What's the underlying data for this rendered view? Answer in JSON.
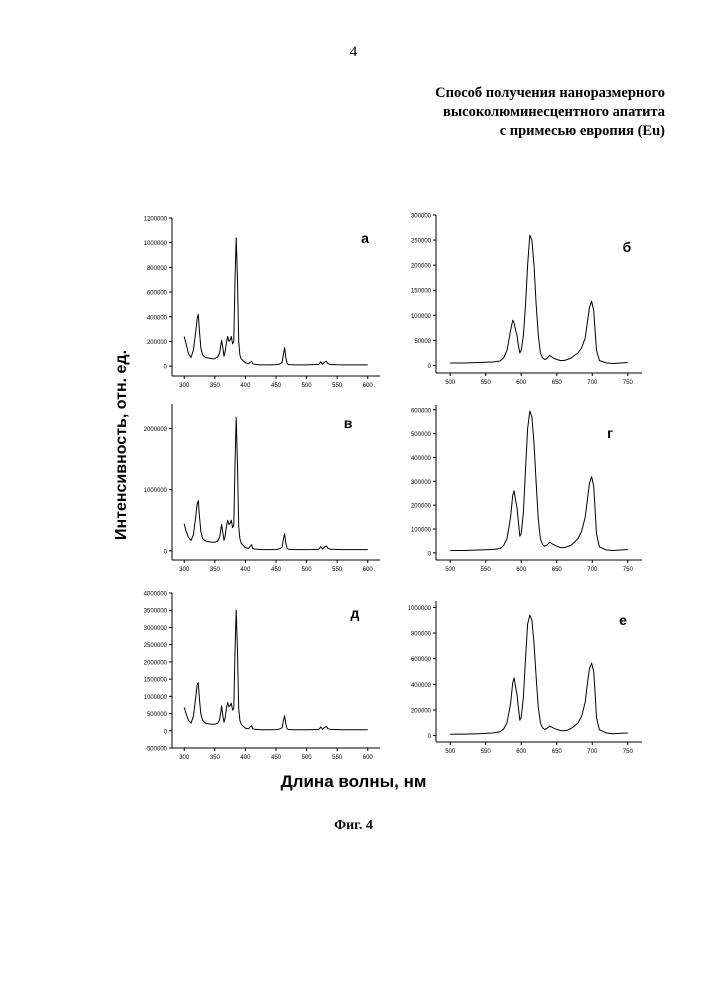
{
  "page_number": "4",
  "title_lines": [
    "Способ получения наноразмерного",
    "высоколюминесцентного апатита",
    "с примесью европия (Eu)"
  ],
  "y_axis_label": "Интенсивность, отн. ед.",
  "x_axis_label": "Длина волны, нм",
  "figure_caption": "Фиг. 4",
  "chart_data": [
    {
      "type": "line",
      "panel_label": "а",
      "xlim": [
        280,
        620
      ],
      "ylim": [
        -80000,
        1200000
      ],
      "xticks": [
        300,
        350,
        400,
        450,
        500,
        550,
        600
      ],
      "yticks": [
        0,
        200000,
        400000,
        600000,
        800000,
        1000000,
        1200000
      ],
      "x": [
        300,
        303,
        307,
        311,
        315,
        319,
        321,
        323,
        325,
        327,
        330,
        335,
        340,
        345,
        350,
        355,
        358,
        361,
        363,
        365,
        367,
        369,
        371,
        373,
        375,
        377,
        379,
        381,
        383,
        385,
        387,
        389,
        391,
        393,
        395,
        397,
        399,
        401,
        405,
        410,
        412,
        415,
        420,
        425,
        430,
        440,
        450,
        455,
        460,
        462,
        464,
        466,
        468,
        470,
        480,
        490,
        500,
        510,
        520,
        523,
        526,
        529,
        532,
        535,
        538,
        541,
        545,
        550,
        560,
        570,
        580,
        590,
        600
      ],
      "y": [
        240000,
        180000,
        100000,
        70000,
        130000,
        290000,
        380000,
        420000,
        280000,
        150000,
        90000,
        70000,
        65000,
        60000,
        60000,
        75000,
        110000,
        210000,
        150000,
        80000,
        120000,
        190000,
        240000,
        200000,
        210000,
        240000,
        180000,
        200000,
        700000,
        1040000,
        700000,
        200000,
        90000,
        60000,
        50000,
        40000,
        30000,
        25000,
        20000,
        40000,
        20000,
        15000,
        12000,
        10000,
        10000,
        10000,
        12000,
        15000,
        30000,
        90000,
        150000,
        70000,
        25000,
        12000,
        10000,
        10000,
        10000,
        12000,
        14000,
        35000,
        15000,
        30000,
        40000,
        20000,
        15000,
        12000,
        12000,
        11000,
        10000,
        10000,
        10000,
        10000,
        10000
      ]
    },
    {
      "type": "line",
      "panel_label": "б",
      "xlim": [
        480,
        770
      ],
      "ylim": [
        -15000,
        300000
      ],
      "xticks": [
        500,
        550,
        600,
        650,
        700,
        750
      ],
      "yticks": [
        0,
        50000,
        100000,
        150000,
        200000,
        250000,
        300000
      ],
      "x": [
        500,
        520,
        540,
        560,
        570,
        575,
        580,
        585,
        588,
        590,
        592,
        594,
        596,
        598,
        600,
        603,
        606,
        609,
        612,
        615,
        618,
        621,
        624,
        627,
        630,
        633,
        636,
        640,
        645,
        650,
        655,
        660,
        665,
        670,
        675,
        680,
        685,
        690,
        693,
        696,
        699,
        702,
        704,
        706,
        710,
        720,
        730,
        740,
        750
      ],
      "y": [
        5000,
        5000,
        6000,
        7000,
        9000,
        15000,
        30000,
        70000,
        90000,
        85000,
        70000,
        60000,
        40000,
        25000,
        30000,
        60000,
        120000,
        200000,
        260000,
        250000,
        200000,
        120000,
        60000,
        25000,
        15000,
        12000,
        14000,
        20000,
        15000,
        12000,
        10000,
        10000,
        12000,
        15000,
        20000,
        25000,
        35000,
        55000,
        85000,
        115000,
        128000,
        110000,
        70000,
        30000,
        10000,
        5000,
        4000,
        5000,
        6000
      ]
    },
    {
      "type": "line",
      "panel_label": "в",
      "xlim": [
        280,
        620
      ],
      "ylim": [
        -150000,
        2400000
      ],
      "xticks": [
        300,
        350,
        400,
        450,
        500,
        550,
        600
      ],
      "yticks": [
        0,
        1000000,
        2000000
      ],
      "x": [
        300,
        303,
        307,
        311,
        315,
        319,
        321,
        323,
        325,
        327,
        330,
        335,
        340,
        345,
        350,
        355,
        358,
        361,
        363,
        365,
        367,
        369,
        371,
        373,
        375,
        377,
        379,
        381,
        383,
        385,
        387,
        389,
        391,
        393,
        395,
        397,
        399,
        401,
        405,
        410,
        412,
        415,
        420,
        425,
        430,
        440,
        450,
        455,
        460,
        462,
        464,
        466,
        468,
        470,
        480,
        490,
        500,
        510,
        520,
        523,
        526,
        529,
        532,
        535,
        538,
        541,
        545,
        550,
        560,
        570,
        580,
        590,
        600
      ],
      "y": [
        440000,
        320000,
        220000,
        170000,
        260000,
        580000,
        760000,
        820000,
        560000,
        320000,
        200000,
        160000,
        150000,
        140000,
        140000,
        160000,
        230000,
        430000,
        300000,
        170000,
        240000,
        400000,
        500000,
        430000,
        450000,
        500000,
        380000,
        420000,
        1400000,
        2180000,
        1400000,
        400000,
        200000,
        130000,
        100000,
        80000,
        60000,
        50000,
        40000,
        100000,
        40000,
        30000,
        25000,
        20000,
        20000,
        20000,
        22000,
        30000,
        60000,
        180000,
        280000,
        130000,
        45000,
        25000,
        20000,
        20000,
        20000,
        22000,
        26000,
        70000,
        30000,
        60000,
        80000,
        40000,
        30000,
        25000,
        24000,
        22000,
        20000,
        20000,
        20000,
        20000,
        20000
      ]
    },
    {
      "type": "line",
      "panel_label": "г",
      "xlim": [
        480,
        770
      ],
      "ylim": [
        -30000,
        620000
      ],
      "xticks": [
        500,
        550,
        600,
        650,
        700,
        750
      ],
      "yticks": [
        0,
        100000,
        200000,
        300000,
        400000,
        500000,
        600000
      ],
      "x": [
        500,
        520,
        540,
        560,
        570,
        575,
        580,
        585,
        588,
        590,
        592,
        594,
        596,
        598,
        600,
        603,
        606,
        609,
        612,
        615,
        618,
        621,
        624,
        627,
        630,
        633,
        636,
        640,
        645,
        650,
        655,
        660,
        665,
        670,
        675,
        680,
        685,
        690,
        693,
        696,
        699,
        702,
        704,
        706,
        710,
        720,
        730,
        740,
        750
      ],
      "y": [
        10000,
        10000,
        12000,
        14000,
        18000,
        30000,
        60000,
        150000,
        240000,
        260000,
        220000,
        190000,
        130000,
        70000,
        80000,
        170000,
        350000,
        520000,
        595000,
        570000,
        460000,
        290000,
        140000,
        60000,
        35000,
        28000,
        32000,
        45000,
        35000,
        28000,
        22000,
        22000,
        26000,
        32000,
        45000,
        60000,
        90000,
        150000,
        220000,
        290000,
        320000,
        280000,
        180000,
        80000,
        25000,
        12000,
        10000,
        12000,
        14000
      ]
    },
    {
      "type": "line",
      "panel_label": "д",
      "xlim": [
        280,
        620
      ],
      "ylim": [
        -500000,
        4000000
      ],
      "xticks": [
        300,
        350,
        400,
        450,
        500,
        550,
        600
      ],
      "yticks": [
        -500000,
        0,
        500000,
        1000000,
        1500000,
        2000000,
        2500000,
        3000000,
        3500000,
        4000000
      ],
      "x": [
        300,
        303,
        307,
        311,
        315,
        319,
        321,
        323,
        325,
        327,
        330,
        335,
        340,
        345,
        350,
        355,
        358,
        361,
        363,
        365,
        367,
        369,
        371,
        373,
        375,
        377,
        379,
        381,
        383,
        385,
        387,
        389,
        391,
        393,
        395,
        397,
        399,
        401,
        405,
        410,
        412,
        415,
        420,
        425,
        430,
        440,
        450,
        455,
        460,
        462,
        464,
        466,
        468,
        470,
        480,
        490,
        500,
        510,
        520,
        523,
        526,
        529,
        532,
        535,
        538,
        541,
        545,
        550,
        560,
        570,
        580,
        590,
        600
      ],
      "y": [
        680000,
        500000,
        300000,
        220000,
        420000,
        1000000,
        1330000,
        1400000,
        900000,
        500000,
        300000,
        220000,
        200000,
        190000,
        190000,
        220000,
        330000,
        720000,
        450000,
        250000,
        380000,
        650000,
        820000,
        700000,
        730000,
        800000,
        600000,
        650000,
        2300000,
        3500000,
        2300000,
        650000,
        300000,
        200000,
        150000,
        120000,
        90000,
        70000,
        60000,
        150000,
        60000,
        45000,
        38000,
        30000,
        30000,
        30000,
        35000,
        45000,
        90000,
        280000,
        440000,
        200000,
        70000,
        38000,
        30000,
        30000,
        30000,
        35000,
        40000,
        110000,
        45000,
        90000,
        120000,
        60000,
        45000,
        38000,
        36000,
        33000,
        30000,
        30000,
        30000,
        30000,
        30000
      ]
    },
    {
      "type": "line",
      "panel_label": "е",
      "xlim": [
        480,
        770
      ],
      "ylim": [
        -50000,
        1050000
      ],
      "xticks": [
        500,
        550,
        600,
        650,
        700,
        750
      ],
      "yticks": [
        0,
        200000,
        400000,
        600000,
        800000,
        1000000
      ],
      "x": [
        500,
        520,
        540,
        560,
        570,
        575,
        580,
        585,
        588,
        590,
        592,
        594,
        596,
        598,
        600,
        603,
        606,
        609,
        612,
        615,
        618,
        621,
        624,
        627,
        630,
        633,
        636,
        640,
        645,
        650,
        655,
        660,
        665,
        670,
        675,
        680,
        685,
        690,
        693,
        696,
        699,
        702,
        704,
        706,
        710,
        720,
        730,
        740,
        750
      ],
      "y": [
        10000,
        12000,
        15000,
        20000,
        30000,
        50000,
        100000,
        250000,
        410000,
        450000,
        380000,
        320000,
        220000,
        120000,
        140000,
        300000,
        600000,
        870000,
        940000,
        900000,
        720000,
        450000,
        220000,
        100000,
        60000,
        48000,
        55000,
        75000,
        60000,
        48000,
        40000,
        38000,
        42000,
        55000,
        75000,
        100000,
        150000,
        260000,
        400000,
        520000,
        565000,
        500000,
        330000,
        140000,
        45000,
        20000,
        15000,
        18000,
        20000
      ]
    }
  ]
}
